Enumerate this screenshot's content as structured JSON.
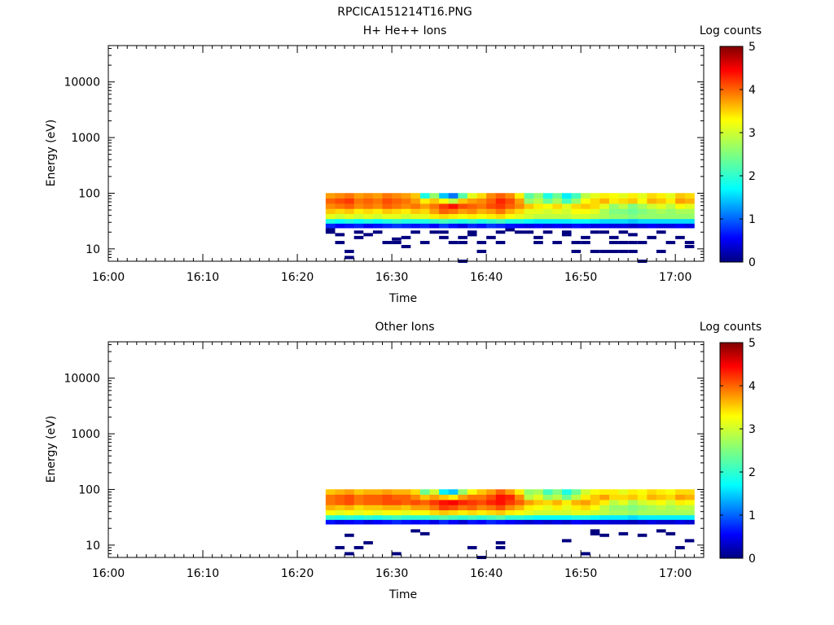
{
  "figure_title": "RPCICA151214T16.PNG",
  "chart_data": [
    {
      "type": "heatmap",
      "title": "H+ He++ Ions",
      "xlabel": "Time",
      "ylabel": "Energy (eV)",
      "x_ticks": [
        "16:00",
        "16:10",
        "16:20",
        "16:30",
        "16:40",
        "16:50",
        "17:00"
      ],
      "xlim": [
        "16:00",
        "17:03"
      ],
      "y_scale": "log",
      "y_ticks": [
        10,
        100,
        1000,
        10000
      ],
      "ylim": [
        6,
        45000
      ],
      "data_time_range": [
        "16:23",
        "17:02"
      ],
      "colorbar": {
        "label": "Log counts",
        "ticks": [
          0,
          1,
          2,
          3,
          4,
          5
        ],
        "range": [
          0,
          5
        ]
      },
      "time_bins": [
        "16:23",
        "16:24",
        "16:25",
        "16:26",
        "16:27",
        "16:28",
        "16:29",
        "16:30",
        "16:31",
        "16:32",
        "16:33",
        "16:34",
        "16:35",
        "16:36",
        "16:37",
        "16:38",
        "16:39",
        "16:40",
        "16:41",
        "16:42",
        "16:43",
        "16:44",
        "16:45",
        "16:46",
        "16:47",
        "16:48",
        "16:49",
        "16:50",
        "16:51",
        "16:52",
        "16:53",
        "16:54",
        "16:55",
        "16:56",
        "16:57",
        "16:58",
        "16:59",
        "17:00",
        "17:01"
      ],
      "energy_bins_eV": [
        90,
        72,
        58,
        47,
        38,
        31,
        26
      ],
      "values": [
        [
          3.6,
          3.7,
          3.8,
          3.6,
          3.7,
          3.6,
          3.8,
          3.7,
          3.6,
          3.4,
          2.0,
          2.6,
          1.6,
          1.2,
          2.3,
          3.0,
          3.3,
          3.7,
          3.9,
          3.7,
          3.2,
          2.3,
          2.6,
          2.0,
          2.4,
          1.8,
          2.2,
          2.8,
          3.0,
          3.2,
          3.1,
          3.0,
          3.2,
          3.0,
          3.3,
          3.2,
          3.0,
          3.4,
          3.3
        ],
        [
          3.9,
          4.0,
          4.1,
          3.8,
          3.9,
          3.8,
          4.0,
          3.9,
          3.8,
          3.6,
          3.2,
          3.4,
          3.1,
          2.8,
          3.4,
          3.6,
          3.7,
          3.9,
          4.2,
          4.0,
          3.6,
          2.6,
          2.8,
          2.4,
          2.7,
          2.2,
          2.6,
          3.1,
          3.3,
          3.5,
          3.2,
          3.3,
          3.4,
          3.1,
          3.5,
          3.4,
          3.2,
          3.6,
          3.5
        ],
        [
          3.7,
          3.8,
          3.9,
          3.7,
          3.8,
          3.7,
          3.9,
          3.8,
          3.7,
          3.8,
          3.6,
          3.8,
          4.1,
          4.3,
          4.0,
          3.9,
          3.8,
          4.0,
          4.1,
          3.9,
          3.7,
          3.4,
          3.2,
          3.1,
          3.3,
          3.0,
          3.3,
          3.4,
          3.3,
          3.0,
          2.6,
          2.8,
          2.5,
          2.7,
          2.9,
          3.0,
          2.8,
          3.1,
          3.0
        ],
        [
          3.4,
          3.3,
          3.4,
          3.2,
          3.3,
          3.2,
          3.4,
          3.3,
          3.2,
          3.4,
          3.3,
          3.6,
          3.9,
          3.8,
          3.6,
          3.7,
          3.5,
          3.6,
          3.8,
          3.5,
          3.3,
          3.0,
          3.0,
          2.9,
          3.0,
          2.9,
          3.1,
          3.1,
          3.0,
          2.7,
          2.5,
          2.5,
          2.4,
          2.5,
          2.6,
          2.7,
          2.6,
          2.7,
          2.7
        ],
        [
          3.0,
          2.9,
          3.0,
          2.9,
          3.0,
          2.9,
          3.0,
          3.0,
          2.9,
          3.0,
          3.0,
          3.2,
          3.3,
          3.2,
          3.1,
          3.2,
          3.1,
          3.2,
          3.3,
          3.1,
          3.0,
          2.9,
          2.8,
          2.8,
          2.8,
          2.8,
          2.9,
          2.9,
          2.8,
          2.7,
          2.6,
          2.6,
          2.5,
          2.6,
          2.6,
          2.6,
          2.6,
          2.6,
          2.6
        ],
        [
          2.0,
          1.9,
          2.0,
          1.9,
          2.0,
          1.9,
          2.0,
          2.1,
          2.0,
          2.0,
          2.0,
          2.1,
          2.2,
          2.1,
          2.0,
          2.1,
          2.0,
          2.1,
          2.2,
          2.0,
          2.0,
          1.9,
          1.8,
          1.8,
          1.8,
          1.8,
          1.9,
          1.9,
          1.8,
          1.7,
          1.7,
          1.7,
          1.6,
          1.7,
          1.7,
          1.7,
          1.7,
          1.7,
          1.7
        ],
        [
          0.8,
          0.6,
          0.7,
          0.8,
          0.6,
          0.7,
          0.8,
          0.9,
          0.8,
          0.7,
          0.8,
          0.6,
          0.9,
          0.7,
          0.5,
          0.8,
          0.7,
          0.9,
          0.8,
          0.7,
          0.6,
          0.5,
          0.6,
          0.5,
          0.6,
          0.5,
          0.7,
          0.6,
          0.5,
          0.6,
          0.5,
          0.5,
          0.4,
          0.5,
          0.6,
          0.5,
          0.5,
          0.6,
          0.5
        ]
      ],
      "sparse_counts": [
        [
          "16:23",
          22
        ],
        [
          "16:23",
          20
        ],
        [
          "16:24",
          18
        ],
        [
          "16:24",
          13
        ],
        [
          "16:25",
          9
        ],
        [
          "16:25",
          7
        ],
        [
          "16:26",
          20
        ],
        [
          "16:26",
          16
        ],
        [
          "16:27",
          18
        ],
        [
          "16:28",
          20
        ],
        [
          "16:29",
          13
        ],
        [
          "16:30",
          15
        ],
        [
          "16:30",
          13
        ],
        [
          "16:31",
          16
        ],
        [
          "16:31",
          11
        ],
        [
          "16:32",
          20
        ],
        [
          "16:33",
          13
        ],
        [
          "16:34",
          20
        ],
        [
          "16:35",
          20
        ],
        [
          "16:35",
          16
        ],
        [
          "16:36",
          13
        ],
        [
          "16:37",
          16
        ],
        [
          "16:37",
          13
        ],
        [
          "16:37",
          6
        ],
        [
          "16:38",
          20
        ],
        [
          "16:38",
          18
        ],
        [
          "16:39",
          13
        ],
        [
          "16:39",
          9
        ],
        [
          "16:40",
          16
        ],
        [
          "16:41",
          20
        ],
        [
          "16:41",
          13
        ],
        [
          "16:42",
          22
        ],
        [
          "16:43",
          20
        ],
        [
          "16:44",
          20
        ],
        [
          "16:45",
          16
        ],
        [
          "16:45",
          13
        ],
        [
          "16:46",
          20
        ],
        [
          "16:47",
          13
        ],
        [
          "16:48",
          20
        ],
        [
          "16:48",
          18
        ],
        [
          "16:49",
          13
        ],
        [
          "16:49",
          9
        ],
        [
          "16:50",
          16
        ],
        [
          "16:50",
          13
        ],
        [
          "16:51",
          20
        ],
        [
          "16:51",
          9
        ],
        [
          "16:52",
          20
        ],
        [
          "16:52",
          9
        ],
        [
          "16:53",
          16
        ],
        [
          "16:53",
          13
        ],
        [
          "16:53",
          9
        ],
        [
          "16:54",
          20
        ],
        [
          "16:54",
          13
        ],
        [
          "16:54",
          9
        ],
        [
          "16:55",
          18
        ],
        [
          "16:55",
          13
        ],
        [
          "16:55",
          9
        ],
        [
          "16:56",
          13
        ],
        [
          "16:56",
          6
        ],
        [
          "16:57",
          16
        ],
        [
          "16:58",
          20
        ],
        [
          "16:58",
          9
        ],
        [
          "16:59",
          13
        ],
        [
          "17:00",
          16
        ],
        [
          "17:01",
          11
        ],
        [
          "17:01",
          13
        ]
      ]
    },
    {
      "type": "heatmap",
      "title": "Other Ions",
      "xlabel": "Time",
      "ylabel": "Energy (eV)",
      "x_ticks": [
        "16:00",
        "16:10",
        "16:20",
        "16:30",
        "16:40",
        "16:50",
        "17:00"
      ],
      "xlim": [
        "16:00",
        "17:03"
      ],
      "y_scale": "log",
      "y_ticks": [
        10,
        100,
        1000,
        10000
      ],
      "ylim": [
        6,
        45000
      ],
      "data_time_range": [
        "16:23",
        "17:02"
      ],
      "colorbar": {
        "label": "Log counts",
        "ticks": [
          0,
          1,
          2,
          3,
          4,
          5
        ],
        "range": [
          0,
          5
        ]
      },
      "time_bins": [
        "16:23",
        "16:24",
        "16:25",
        "16:26",
        "16:27",
        "16:28",
        "16:29",
        "16:30",
        "16:31",
        "16:32",
        "16:33",
        "16:34",
        "16:35",
        "16:36",
        "16:37",
        "16:38",
        "16:39",
        "16:40",
        "16:41",
        "16:42",
        "16:43",
        "16:44",
        "16:45",
        "16:46",
        "16:47",
        "16:48",
        "16:49",
        "16:50",
        "16:51",
        "16:52",
        "16:53",
        "16:54",
        "16:55",
        "16:56",
        "16:57",
        "16:58",
        "16:59",
        "17:00",
        "17:01"
      ],
      "energy_bins_eV": [
        90,
        72,
        58,
        47,
        38,
        31,
        26
      ],
      "values": [
        [
          3.4,
          3.5,
          3.6,
          3.4,
          3.5,
          3.5,
          3.6,
          3.5,
          3.5,
          3.3,
          2.4,
          2.9,
          1.8,
          1.6,
          2.6,
          3.1,
          3.4,
          3.6,
          3.9,
          3.6,
          3.2,
          2.6,
          2.7,
          2.2,
          2.5,
          2.0,
          2.4,
          2.9,
          3.1,
          3.2,
          3.2,
          3.0,
          3.2,
          3.1,
          3.3,
          3.2,
          3.1,
          3.3,
          3.3
        ],
        [
          3.8,
          3.9,
          4.0,
          3.8,
          3.9,
          3.9,
          4.0,
          3.9,
          3.9,
          3.7,
          3.4,
          3.6,
          3.4,
          3.2,
          3.6,
          3.8,
          3.8,
          4.0,
          4.3,
          4.2,
          3.7,
          2.8,
          3.0,
          2.6,
          2.8,
          2.4,
          2.8,
          3.2,
          3.4,
          3.6,
          3.3,
          3.3,
          3.4,
          3.2,
          3.5,
          3.4,
          3.3,
          3.6,
          3.5
        ],
        [
          3.8,
          3.9,
          4.0,
          3.8,
          3.9,
          3.9,
          4.0,
          4.0,
          3.9,
          4.0,
          3.9,
          4.1,
          4.3,
          4.4,
          4.2,
          4.1,
          4.0,
          4.2,
          4.3,
          4.1,
          3.9,
          3.6,
          3.4,
          3.3,
          3.5,
          3.2,
          3.5,
          3.6,
          3.4,
          3.2,
          2.8,
          3.0,
          2.7,
          2.9,
          3.0,
          3.1,
          2.9,
          3.2,
          3.1
        ],
        [
          3.5,
          3.4,
          3.5,
          3.3,
          3.4,
          3.4,
          3.5,
          3.5,
          3.4,
          3.6,
          3.6,
          3.8,
          4.1,
          4.0,
          3.8,
          3.9,
          3.7,
          3.8,
          4.0,
          3.7,
          3.5,
          3.2,
          3.1,
          3.0,
          3.2,
          3.0,
          3.2,
          3.3,
          3.1,
          2.8,
          2.6,
          2.6,
          2.5,
          2.6,
          2.7,
          2.8,
          2.7,
          2.8,
          2.8
        ],
        [
          3.1,
          3.0,
          3.1,
          3.0,
          3.1,
          3.0,
          3.1,
          3.1,
          3.0,
          3.1,
          3.1,
          3.3,
          3.4,
          3.3,
          3.2,
          3.3,
          3.2,
          3.3,
          3.4,
          3.2,
          3.1,
          3.0,
          2.9,
          2.9,
          2.9,
          2.9,
          3.0,
          3.0,
          2.9,
          2.8,
          2.7,
          2.7,
          2.6,
          2.7,
          2.7,
          2.7,
          2.7,
          2.7,
          2.7
        ],
        [
          2.1,
          2.0,
          2.1,
          2.0,
          2.1,
          2.0,
          2.1,
          2.2,
          2.1,
          2.1,
          2.1,
          2.2,
          2.3,
          2.2,
          2.1,
          2.2,
          2.1,
          2.2,
          2.3,
          2.1,
          2.1,
          2.0,
          1.9,
          1.9,
          1.9,
          1.9,
          2.0,
          2.0,
          1.9,
          1.8,
          1.8,
          1.8,
          1.7,
          1.8,
          1.8,
          1.8,
          1.8,
          1.8,
          1.8
        ],
        [
          0.7,
          0.5,
          0.6,
          0.7,
          0.5,
          0.6,
          0.7,
          0.8,
          0.7,
          0.6,
          0.7,
          0.5,
          0.8,
          0.6,
          0.4,
          0.7,
          0.6,
          0.8,
          0.7,
          0.6,
          0.5,
          0.4,
          0.5,
          0.4,
          0.5,
          0.4,
          0.6,
          0.5,
          0.4,
          0.5,
          0.4,
          0.4,
          0.3,
          0.4,
          0.5,
          0.4,
          0.4,
          0.5,
          0.4
        ]
      ],
      "sparse_counts": [
        [
          "16:24",
          9
        ],
        [
          "16:25",
          15
        ],
        [
          "16:25",
          7
        ],
        [
          "16:26",
          9
        ],
        [
          "16:27",
          11
        ],
        [
          "16:30",
          7
        ],
        [
          "16:32",
          18
        ],
        [
          "16:33",
          16
        ],
        [
          "16:38",
          9
        ],
        [
          "16:39",
          6
        ],
        [
          "16:41",
          9
        ],
        [
          "16:41",
          11
        ],
        [
          "16:48",
          12
        ],
        [
          "16:50",
          7
        ],
        [
          "16:51",
          16
        ],
        [
          "16:51",
          18
        ],
        [
          "16:52",
          15
        ],
        [
          "16:54",
          16
        ],
        [
          "16:56",
          15
        ],
        [
          "16:58",
          18
        ],
        [
          "16:59",
          16
        ],
        [
          "17:00",
          9
        ],
        [
          "17:01",
          12
        ]
      ]
    }
  ]
}
